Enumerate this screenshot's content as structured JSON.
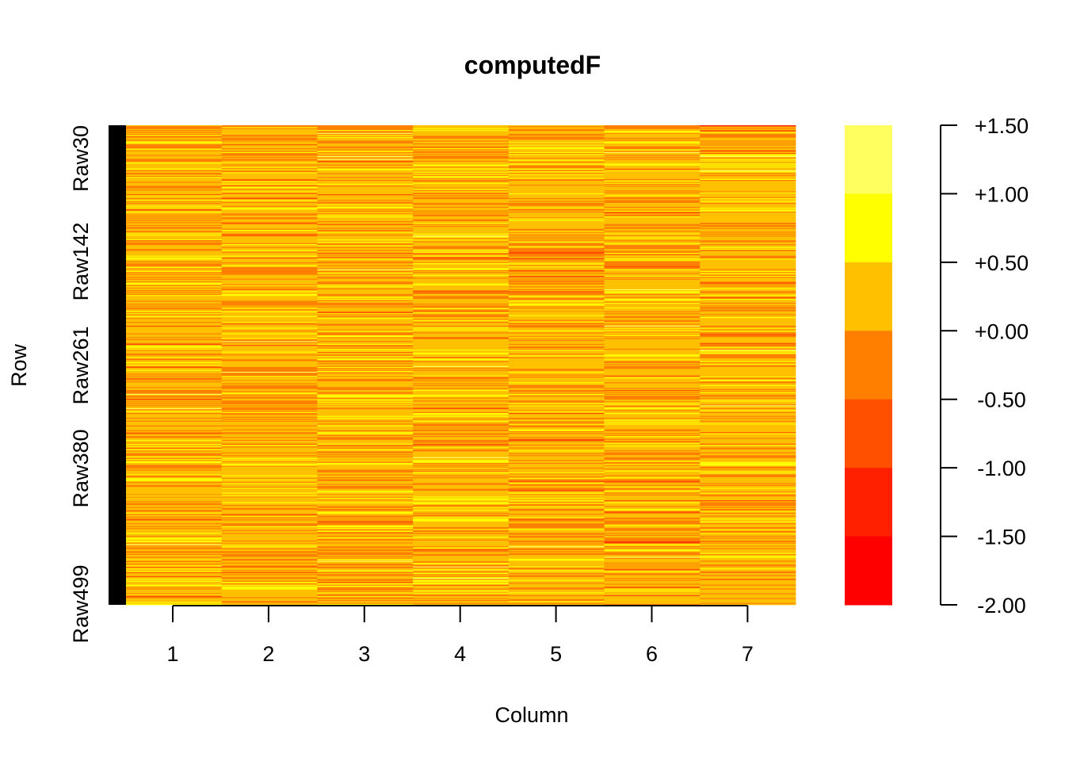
{
  "chart_data": {
    "type": "heatmap",
    "title": "computedF",
    "xlabel": "Column",
    "ylabel": "Row",
    "x_categories": [
      "1",
      "2",
      "3",
      "4",
      "5",
      "6",
      "7"
    ],
    "y_tick_labels": [
      "Raw30",
      "Raw142",
      "Raw261",
      "Raw380",
      "Raw499"
    ],
    "row_count": 500,
    "first_column_color": "#000000",
    "colorbar": {
      "range": [
        -2.0,
        1.5
      ],
      "tick_labels": [
        "+1.50",
        "+1.00",
        "+0.50",
        "+0.00",
        "-0.50",
        "-1.00",
        "-1.50",
        "-2.00"
      ],
      "bins": [
        {
          "from": 1.0,
          "to": 1.5,
          "color": "#FFFF60"
        },
        {
          "from": 0.5,
          "to": 1.0,
          "color": "#FFFF00"
        },
        {
          "from": 0.0,
          "to": 0.5,
          "color": "#FFC000"
        },
        {
          "from": -0.5,
          "to": 0.0,
          "color": "#FF8000"
        },
        {
          "from": -1.0,
          "to": -0.5,
          "color": "#FF5000"
        },
        {
          "from": -1.5,
          "to": -1.0,
          "color": "#FF2000"
        },
        {
          "from": -2.0,
          "to": -1.5,
          "color": "#FF0000"
        }
      ]
    },
    "value_distribution": {
      "mean": 0.15,
      "spread": 0.33,
      "min": -2.0,
      "max": 1.5
    }
  }
}
